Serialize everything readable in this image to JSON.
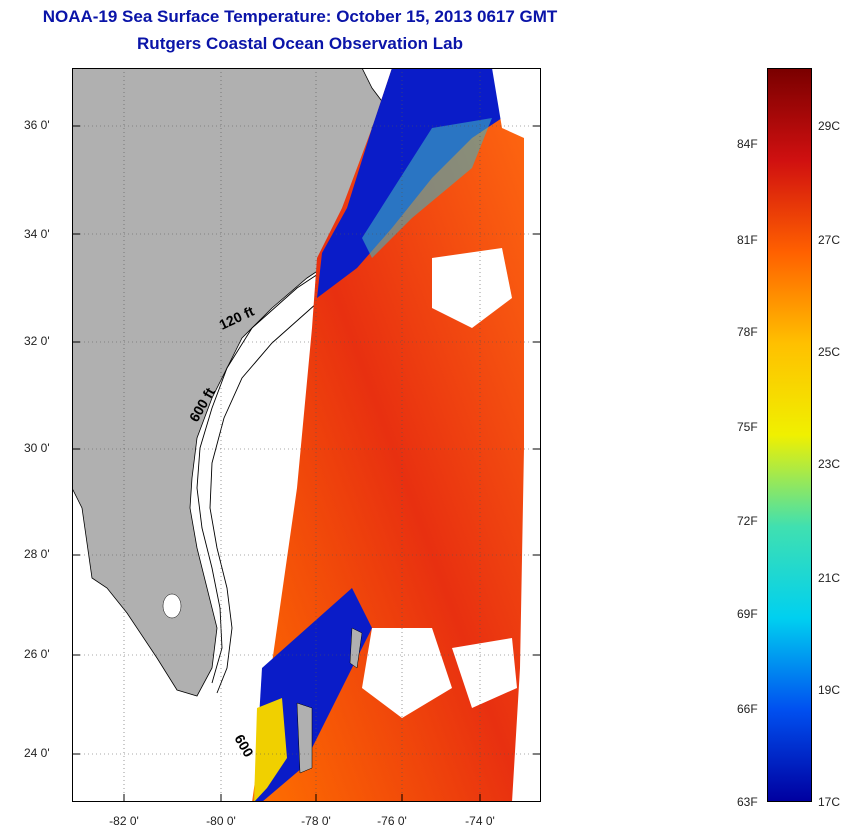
{
  "title": "NOAA-19 Sea Surface Temperature:  October 15, 2013 0617 GMT",
  "subtitle": "Rutgers Coastal Ocean Observation Lab",
  "map": {
    "lat_ticks": [
      "36 0'",
      "34 0'",
      "32 0'",
      "30 0'",
      "28 0'",
      "26 0'",
      "24 0'"
    ],
    "lon_ticks": [
      "-82 0'",
      "-80 0'",
      "-78 0'",
      "-76 0'",
      "-74 0'"
    ],
    "lat_range": [
      23,
      37
    ],
    "lon_range": [
      -83,
      -73
    ],
    "isobath_labels": [
      "120 ft",
      "600 ft",
      "600"
    ],
    "land_color": "#b0b0b0",
    "ocean_color": "#ffffff",
    "grid": "dotted"
  },
  "colorbar": {
    "range_celsius": [
      17,
      30
    ],
    "fahrenheit_labels": [
      "84F",
      "81F",
      "78F",
      "75F",
      "72F",
      "69F",
      "66F",
      "63F"
    ],
    "celsius_labels": [
      "29C",
      "27C",
      "25C",
      "23C",
      "21C",
      "19C",
      "17C"
    ],
    "colors": [
      "#7a0000",
      "#d01010",
      "#ff6000",
      "#ffc000",
      "#f0f000",
      "#40e0b0",
      "#00d0f0",
      "#0050f0",
      "#0000a0"
    ]
  }
}
